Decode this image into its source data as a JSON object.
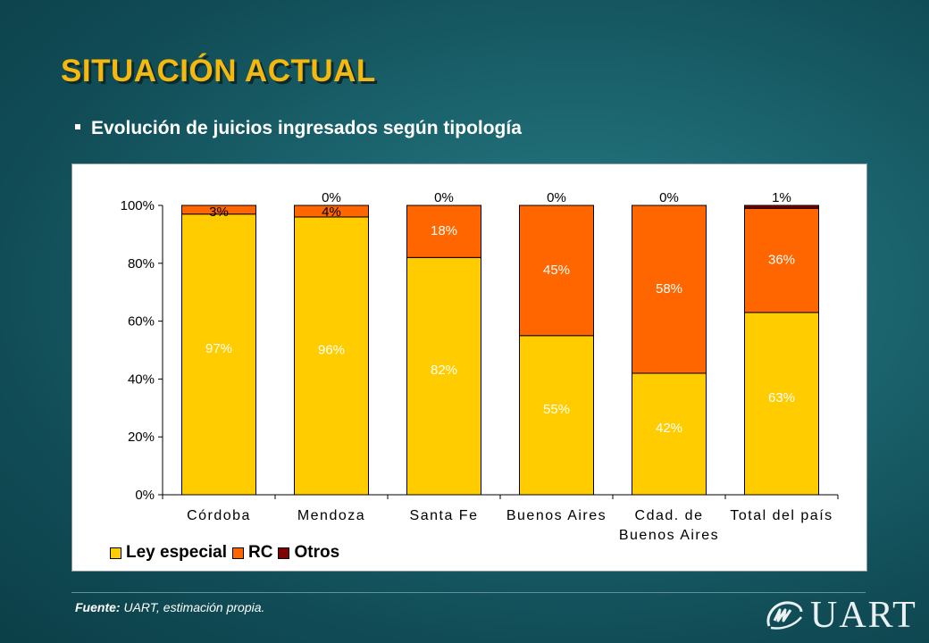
{
  "title": "SITUACIÓN ACTUAL",
  "subtitle": "Evolución de juicios ingresados según tipología",
  "chart_data": {
    "type": "bar",
    "stacked": true,
    "categories": [
      "Córdoba",
      "Mendoza",
      "Santa Fe",
      "Buenos Aires",
      "Cdad. de Buenos Aires",
      "Total del país"
    ],
    "category_lines": [
      [
        "Córdoba"
      ],
      [
        "Mendoza"
      ],
      [
        "Santa Fe"
      ],
      [
        "Buenos Aires"
      ],
      [
        "Cdad. de",
        "Buenos Aires"
      ],
      [
        "Total del país"
      ]
    ],
    "series": [
      {
        "name": "Ley especial",
        "color": "#ffcc00",
        "values": [
          97,
          96,
          82,
          55,
          42,
          63
        ],
        "labels": [
          "97%",
          "96%",
          "82%",
          "55%",
          "42%",
          "63%"
        ]
      },
      {
        "name": "RC",
        "color": "#ff6600",
        "values": [
          3,
          4,
          18,
          45,
          58,
          36
        ],
        "labels": [
          "3%",
          "4%",
          "18%",
          "45%",
          "58%",
          "36%"
        ]
      },
      {
        "name": "Otros",
        "color": "#800000",
        "values": [
          0,
          0,
          0,
          0,
          0,
          1
        ],
        "labels": [
          "",
          "0%",
          "0%",
          "0%",
          "0%",
          "1%"
        ]
      }
    ],
    "yticks": [
      "0%",
      "20%",
      "40%",
      "60%",
      "80%",
      "100%"
    ],
    "ylim": [
      0,
      100
    ],
    "legend_position": "bottom-left"
  },
  "legend": {
    "ley_especial": "Ley especial",
    "rc": "RC",
    "otros": "Otros",
    "colors": {
      "ley_especial": "#ffcc00",
      "rc": "#ff6600",
      "otros": "#800000"
    }
  },
  "footer": {
    "source_label": "Fuente:",
    "source_text": " UART, estimación propia."
  },
  "logo": {
    "text": "UART"
  }
}
